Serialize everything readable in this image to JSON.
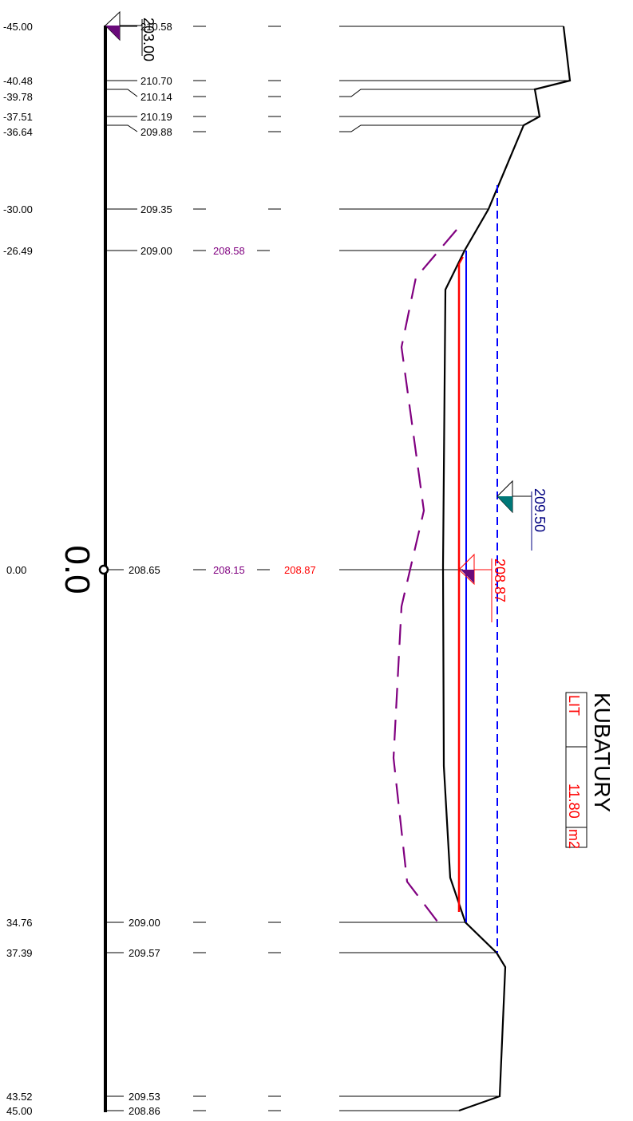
{
  "stations": [
    {
      "station": "-45.00",
      "terrain": "210.58",
      "design": "",
      "water": ""
    },
    {
      "station": "-40.48",
      "terrain": "210.70",
      "design": "",
      "water": ""
    },
    {
      "station": "-39.78",
      "terrain": "210.14",
      "design": "",
      "water": ""
    },
    {
      "station": "-37.51",
      "terrain": "210.19",
      "design": "",
      "water": ""
    },
    {
      "station": "-36.64",
      "terrain": "209.88",
      "design": "",
      "water": ""
    },
    {
      "station": "-30.00",
      "terrain": "209.35",
      "design": "",
      "water": ""
    },
    {
      "station": "-26.49",
      "terrain": "209.00",
      "design": "208.58",
      "water": ""
    },
    {
      "station": "0.00",
      "terrain": "208.65",
      "design": "208.15",
      "water": "208.87"
    },
    {
      "station": "34.76",
      "terrain": "209.00",
      "design": "",
      "water": ""
    },
    {
      "station": "37.39",
      "terrain": "209.57",
      "design": "",
      "water": ""
    },
    {
      "station": "43.52",
      "terrain": "209.53",
      "design": "",
      "water": ""
    },
    {
      "station": "45.00",
      "terrain": "208.86",
      "design": "",
      "water": ""
    }
  ],
  "profile": {
    "section_label": "0.0",
    "datum_label": "203.00",
    "blue_level_label": "209.50",
    "red_level_label": "208.87"
  },
  "kubatury": {
    "title": "KUBATURY",
    "row_label": "LIT",
    "value": "11.80",
    "unit": "m2"
  },
  "colors": {
    "terrain": "#000000",
    "design": "#800080",
    "water_red": "#ff0000",
    "water_blue": "#0000ff",
    "level_blue": "#000080",
    "marker_teal": "#007777",
    "marker_purple": "#6a0a7a"
  }
}
